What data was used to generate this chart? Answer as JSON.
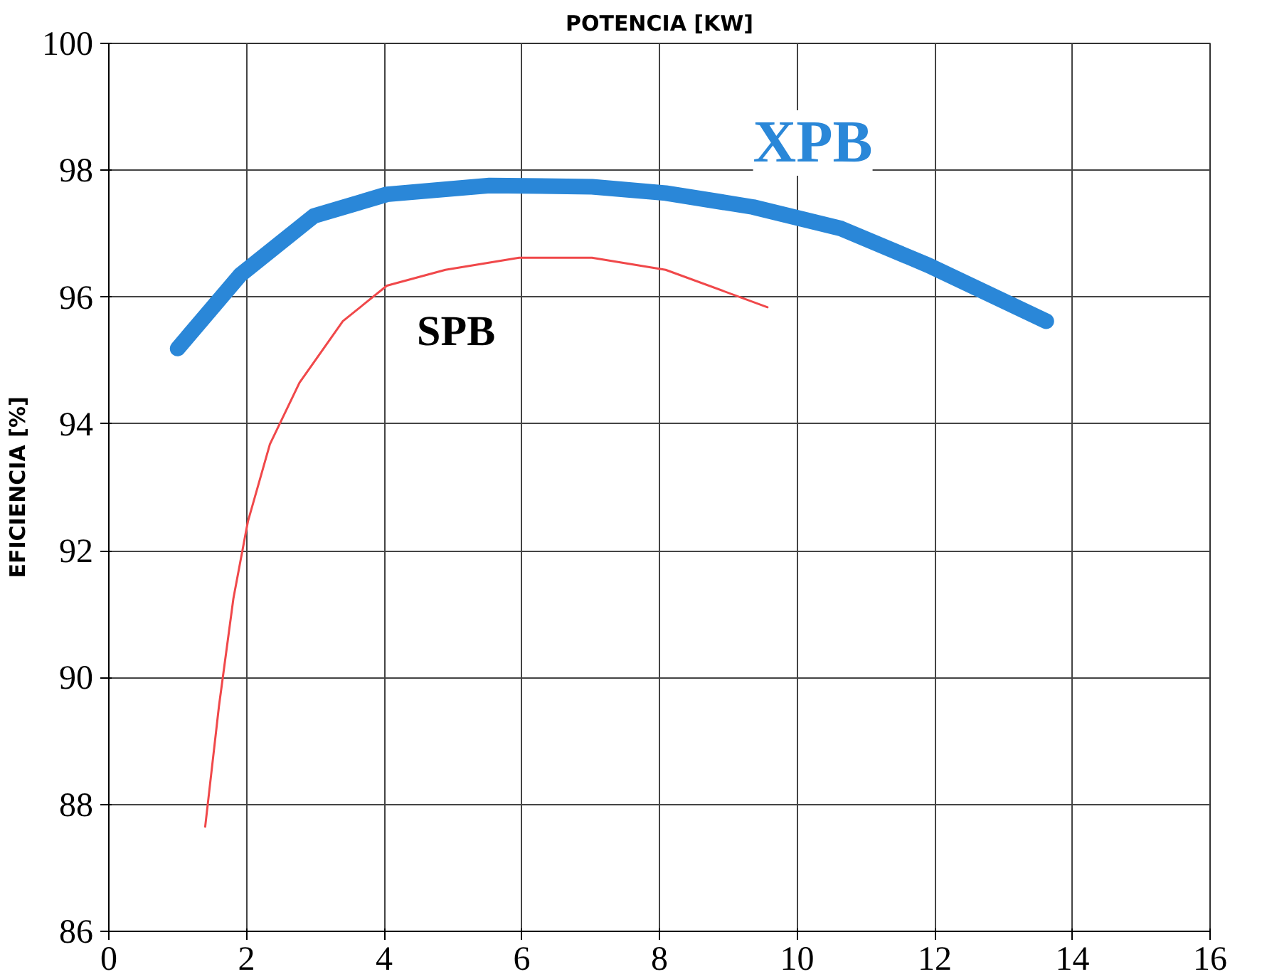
{
  "chart_data": {
    "type": "line",
    "title": "POTENCIA [KW]",
    "ylabel": "EFICIENCIA [%]",
    "xlim": [
      0,
      16
    ],
    "xticks": [
      0,
      2,
      4,
      6,
      8,
      10,
      12,
      14,
      16
    ],
    "ylim": [
      86,
      100
    ],
    "yticks": [
      86,
      88,
      90,
      92,
      94,
      96,
      98,
      100
    ],
    "grid": true,
    "series": [
      {
        "name": "XPB",
        "color": "#2a87d8",
        "x": [
          1.0,
          1.91,
          2.98,
          4.04,
          5.53,
          7.02,
          8.09,
          9.36,
          10.64,
          11.91,
          13.62
        ],
        "values": [
          95.19,
          96.35,
          97.28,
          97.62,
          97.76,
          97.74,
          97.64,
          97.42,
          97.08,
          96.5,
          95.62
        ]
      },
      {
        "name": "SPB",
        "color": "#f0484a",
        "x": [
          1.4,
          1.6,
          1.81,
          2.02,
          2.34,
          2.77,
          3.4,
          4.04,
          4.89,
          5.96,
          7.02,
          8.09,
          9.57
        ],
        "values": [
          87.65,
          89.55,
          91.25,
          92.46,
          93.68,
          94.65,
          95.62,
          96.18,
          96.43,
          96.62,
          96.62,
          96.43,
          95.84
        ]
      }
    ]
  }
}
